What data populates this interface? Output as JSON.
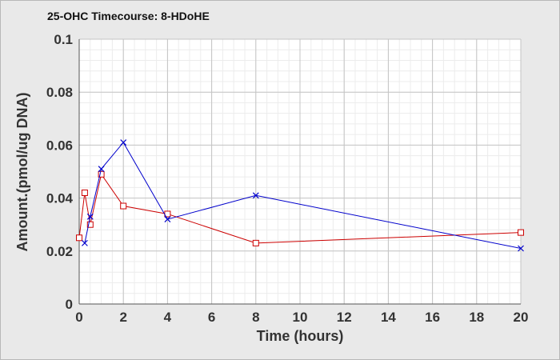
{
  "chart_data": {
    "type": "line",
    "title": "25-OHC Timecourse: 8-HDoHE",
    "xlabel": "Time (hours)",
    "ylabel": "Amount.(pmol/ug DNA)",
    "xlim": [
      0,
      20
    ],
    "ylim": [
      0,
      0.1
    ],
    "xticks": [
      0,
      2,
      4,
      6,
      8,
      10,
      12,
      14,
      16,
      18,
      20
    ],
    "yticks": [
      0,
      0.02,
      0.04,
      0.06,
      0.08,
      0.1
    ],
    "ytick_labels": [
      "0",
      "0.02",
      "0.04",
      "0.06",
      "0.08",
      "0.1"
    ],
    "grid": true,
    "series": [
      {
        "color": "#cc0000",
        "marker": "square",
        "x": [
          0,
          0.25,
          0.5,
          1,
          2,
          4,
          8,
          20
        ],
        "y": [
          0.025,
          0.042,
          0.03,
          0.049,
          0.037,
          0.034,
          0.023,
          0.027
        ]
      },
      {
        "color": "#0000cc",
        "marker": "x",
        "x": [
          0.25,
          0.5,
          1,
          2,
          4,
          8,
          20
        ],
        "y": [
          0.023,
          0.033,
          0.051,
          0.061,
          0.032,
          0.041,
          0.021
        ]
      }
    ]
  }
}
